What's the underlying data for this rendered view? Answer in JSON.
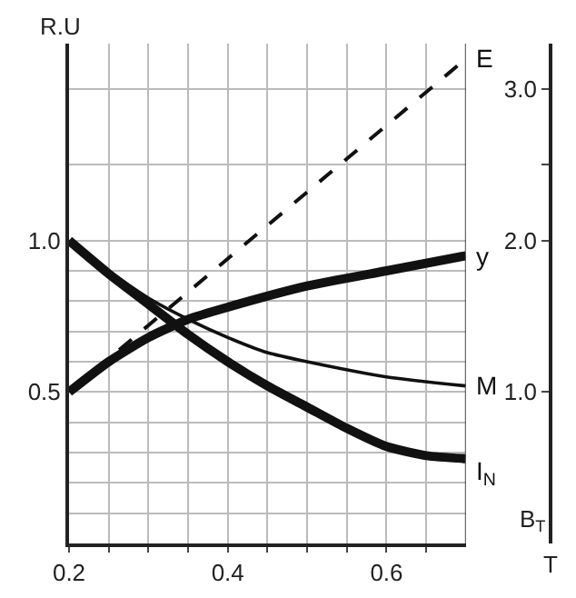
{
  "chart_data": {
    "type": "line",
    "xlabel": "T",
    "ylabel": "R.U",
    "y2label": "B$_{T}$",
    "xlim": [
      0.2,
      0.7
    ],
    "xticks": [
      0.2,
      {
        "value": 0.25,
        "label": null
      },
      {
        "value": 0.3,
        "label": null
      },
      {
        "value": 0.35,
        "label": null
      },
      0.4,
      {
        "value": 0.45,
        "label": null
      },
      {
        "value": 0.5,
        "label": null
      },
      {
        "value": 0.55,
        "label": null
      },
      0.6,
      {
        "value": 0.65,
        "label": null
      }
    ],
    "ylim": [
      0,
      1.65
    ],
    "yticks": [
      {
        "value": 0.1,
        "label": null
      },
      {
        "value": 0.2,
        "label": null
      },
      {
        "value": 0.3,
        "label": null
      },
      {
        "value": 0.4,
        "label": null
      },
      0.5,
      {
        "value": 0.6,
        "label": null
      },
      {
        "value": 0.7,
        "label": null
      },
      {
        "value": 0.8,
        "label": null
      },
      {
        "value": 0.9,
        "label": null
      },
      {
        "value": 1.0,
        "label": "1.0"
      },
      {
        "value": 1.25,
        "label": null
      },
      {
        "value": 1.5,
        "label": null
      }
    ],
    "y2lim": [
      0,
      3.3
    ],
    "y2ticks": [
      {
        "value": 1.0,
        "label": "1.0"
      },
      {
        "value": 2.0,
        "label": "2.0"
      },
      {
        "value": 2.5,
        "label": null
      },
      {
        "value": 3.0,
        "label": "3.0"
      }
    ],
    "grid": true,
    "legend": false,
    "marker": "none",
    "series": [
      {
        "name": "E",
        "color": "#111111",
        "axis": "y2",
        "line_style": "dashed",
        "x": [
          0.2,
          0.7
        ],
        "values": [
          1.0,
          3.2
        ]
      },
      {
        "name": "y",
        "color": "#111111",
        "x": [
          0.2,
          0.25,
          0.3,
          0.35,
          0.4,
          0.5,
          0.6,
          0.7
        ],
        "values": [
          0.5,
          0.6,
          0.68,
          0.74,
          0.78,
          0.85,
          0.9,
          0.95
        ]
      },
      {
        "name": "M",
        "color": "#111111",
        "x": [
          0.2,
          0.25,
          0.3,
          0.35,
          0.4,
          0.45,
          0.5,
          0.6,
          0.7
        ],
        "values": [
          1.0,
          0.9,
          0.81,
          0.74,
          0.68,
          0.63,
          0.6,
          0.55,
          0.52
        ]
      },
      {
        "name": "I$_{N}$",
        "color": "#111111",
        "x": [
          0.2,
          0.25,
          0.3,
          0.35,
          0.4,
          0.45,
          0.5,
          0.55,
          0.6,
          0.65,
          0.7
        ],
        "values": [
          1.0,
          0.89,
          0.79,
          0.69,
          0.6,
          0.52,
          0.45,
          0.38,
          0.32,
          0.29,
          0.28
        ]
      }
    ]
  }
}
